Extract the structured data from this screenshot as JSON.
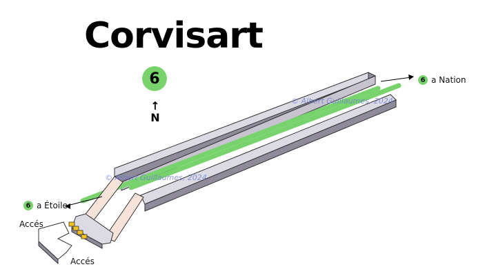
{
  "station": {
    "name": "Corvisart"
  },
  "line": {
    "number": "6",
    "color": "#79d36d"
  },
  "north": {
    "arrow": "↑",
    "label": "N"
  },
  "directions": [
    {
      "line": "6",
      "label": "a Nation"
    },
    {
      "line": "6",
      "label": "a Étoile"
    }
  ],
  "accesses": [
    "Accés",
    "Accés"
  ],
  "copyright": [
    "© Albert Guillaumes, 2024",
    "© Albert Guillaumes, 2024"
  ],
  "colors": {
    "platform_top": "#dcdbe3",
    "platform_side": "#8f8b9a",
    "wall": "#f6e3da",
    "track": "#79d36d",
    "stairs": "#f3c21e",
    "watermark": "#6b7ad8"
  }
}
